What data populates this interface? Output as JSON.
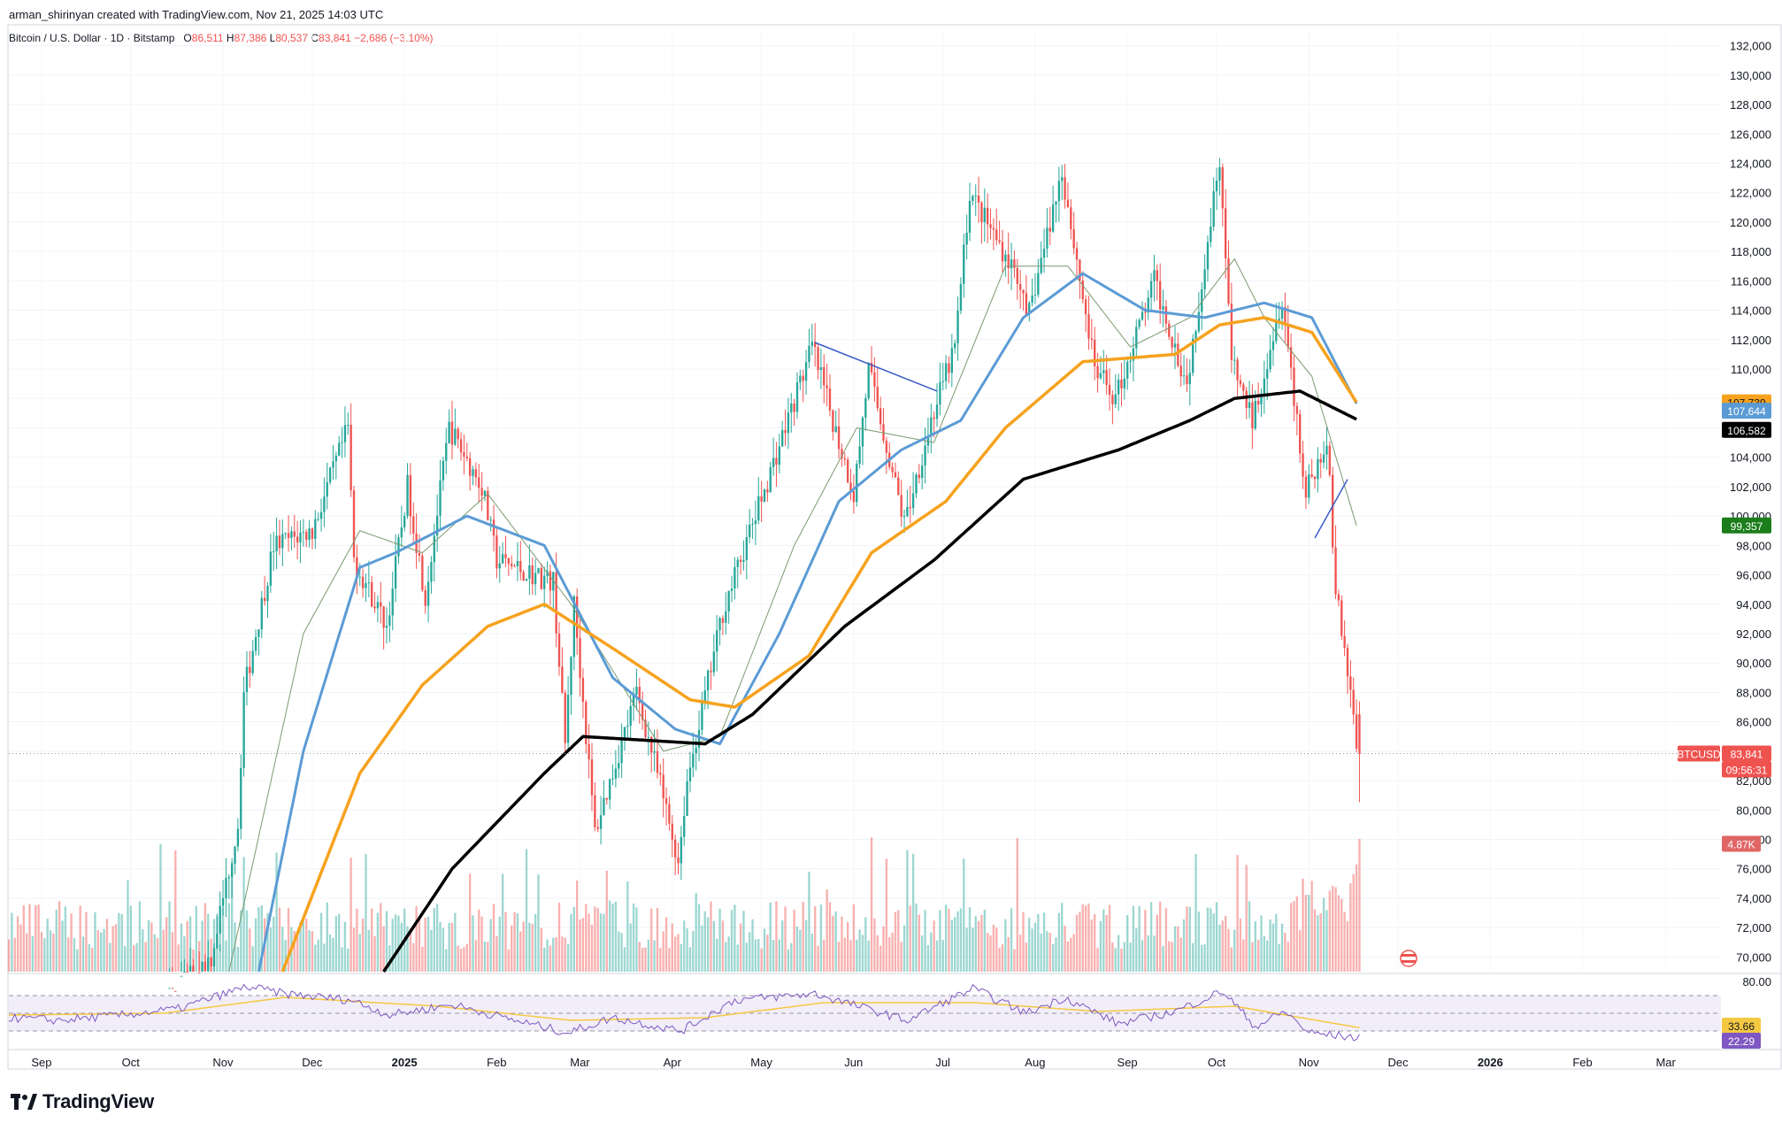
{
  "header": {
    "created_line": "arman_shirinyan created with TradingView.com, Nov 21, 2025 14:03 UTC",
    "symbol_line": "Bitcoin / U.S. Dollar · 1D · Bitstamp",
    "ohlc": {
      "o_label": "O",
      "o_value": "86,511",
      "h_label": "H",
      "h_value": "87,386",
      "l_label": "L",
      "l_value": "80,537",
      "c_label": "C",
      "c_value": "83,841",
      "change": "−2,686 (−3.10%)"
    }
  },
  "brand": {
    "name": "TradingView"
  },
  "colors": {
    "up": "#26a69a",
    "down": "#ef5350",
    "ma_fast": "#7a9a6e",
    "ma_blue": "#5b9bd5",
    "ma_orange": "#f6a21e",
    "ma_black": "#000000",
    "trendline": "#3a5cc7",
    "rsi_line": "#7e57c2",
    "rsi_ma": "#f5c842",
    "rsi_band": "#ede7f6"
  },
  "chart_data": {
    "type": "candlestick",
    "symbol": "Bitcoin / U.S. Dollar",
    "timeframe": "1D",
    "exchange": "Bitstamp",
    "price_axis": {
      "ticks": [
        "132,000",
        "130,000",
        "128,000",
        "126,000",
        "124,000",
        "122,000",
        "120,000",
        "118,000",
        "116,000",
        "114,000",
        "112,000",
        "110,000",
        "108,000",
        "106,000",
        "104,000",
        "102,000",
        "100,000",
        "98,000",
        "96,000",
        "94,000",
        "92,000",
        "90,000",
        "88,000",
        "86,000",
        "84,000",
        "82,000",
        "80,000",
        "78,000",
        "76,000",
        "74,000",
        "72,000",
        "70,000"
      ],
      "tick_values": [
        132000,
        130000,
        128000,
        126000,
        124000,
        122000,
        120000,
        118000,
        116000,
        114000,
        112000,
        110000,
        108000,
        106000,
        104000,
        102000,
        100000,
        98000,
        96000,
        94000,
        92000,
        90000,
        88000,
        86000,
        84000,
        82000,
        80000,
        78000,
        76000,
        74000,
        72000,
        70000
      ],
      "range": [
        69000,
        133000
      ]
    },
    "time_axis": {
      "labels": [
        "Sep",
        "Oct",
        "Nov",
        "Dec",
        "2025",
        "Feb",
        "Mar",
        "Apr",
        "May",
        "Jun",
        "Jul",
        "Aug",
        "Sep",
        "Oct",
        "Nov",
        "Dec",
        "2026",
        "Feb",
        "Mar"
      ],
      "bold": [
        "2025",
        "2026"
      ]
    },
    "price_path": [
      [
        "2024-08-24",
        64000
      ],
      [
        "2024-09-01",
        59000
      ],
      [
        "2024-09-15",
        60000
      ],
      [
        "2024-10-01",
        62000
      ],
      [
        "2024-10-15",
        67000
      ],
      [
        "2024-11-01",
        70000
      ],
      [
        "2024-11-06",
        75000
      ],
      [
        "2024-11-10",
        79000
      ],
      [
        "2024-11-12",
        88000
      ],
      [
        "2024-11-22",
        98000
      ],
      [
        "2024-12-05",
        99000
      ],
      [
        "2024-12-17",
        106000
      ],
      [
        "2024-12-19",
        97000
      ],
      [
        "2024-12-30",
        92500
      ],
      [
        "2025-01-06",
        102000
      ],
      [
        "2025-01-12",
        94500
      ],
      [
        "2025-01-20",
        106000
      ],
      [
        "2025-01-31",
        102000
      ],
      [
        "2025-02-05",
        97000
      ],
      [
        "2025-02-24",
        95500
      ],
      [
        "2025-02-28",
        84500
      ],
      [
        "2025-03-03",
        94000
      ],
      [
        "2025-03-10",
        78500
      ],
      [
        "2025-03-24",
        88000
      ],
      [
        "2025-03-31",
        82500
      ],
      [
        "2025-04-07",
        76500
      ],
      [
        "2025-04-10",
        82000
      ],
      [
        "2025-04-22",
        93500
      ],
      [
        "2025-05-08",
        103000
      ],
      [
        "2025-05-22",
        111500
      ],
      [
        "2025-06-05",
        101500
      ],
      [
        "2025-06-10",
        110000
      ],
      [
        "2025-06-22",
        99500
      ],
      [
        "2025-07-01",
        106500
      ],
      [
        "2025-07-09",
        111500
      ],
      [
        "2025-07-14",
        122000
      ],
      [
        "2025-07-31",
        116000
      ],
      [
        "2025-08-02",
        113000
      ],
      [
        "2025-08-14",
        123500
      ],
      [
        "2025-08-25",
        110000
      ],
      [
        "2025-09-01",
        108000
      ],
      [
        "2025-09-14",
        116000
      ],
      [
        "2025-09-25",
        109000
      ],
      [
        "2025-10-06",
        124500
      ],
      [
        "2025-10-10",
        110500
      ],
      [
        "2025-10-17",
        106500
      ],
      [
        "2025-10-27",
        115000
      ],
      [
        "2025-11-04",
        101500
      ],
      [
        "2025-11-11",
        105500
      ],
      [
        "2025-11-14",
        95000
      ],
      [
        "2025-11-20",
        86500
      ],
      [
        "2025-11-21",
        83841
      ]
    ],
    "last_candle": {
      "date": "2025-11-21",
      "open": 86511,
      "high": 87386,
      "low": 80537,
      "close": 83841
    },
    "moving_averages": [
      {
        "color": "#7a9a6e",
        "last_value": 99357,
        "points": [
          [
            "2024-11-06",
            69000
          ],
          [
            "2024-12-01",
            92000
          ],
          [
            "2024-12-20",
            99000
          ],
          [
            "2025-01-10",
            97500
          ],
          [
            "2025-02-01",
            101500
          ],
          [
            "2025-03-01",
            94000
          ],
          [
            "2025-04-01",
            84000
          ],
          [
            "2025-04-20",
            85000
          ],
          [
            "2025-05-15",
            98000
          ],
          [
            "2025-06-05",
            106000
          ],
          [
            "2025-07-01",
            105000
          ],
          [
            "2025-07-25",
            117000
          ],
          [
            "2025-08-15",
            117000
          ],
          [
            "2025-09-05",
            111500
          ],
          [
            "2025-09-25",
            113500
          ],
          [
            "2025-10-10",
            117500
          ],
          [
            "2025-10-20",
            113500
          ],
          [
            "2025-11-05",
            109500
          ],
          [
            "2025-11-20",
            99357
          ]
        ]
      },
      {
        "color": "#5b9bd5",
        "last_value": 107644,
        "points": [
          [
            "2024-11-16",
            69000
          ],
          [
            "2024-12-01",
            84000
          ],
          [
            "2024-12-20",
            96500
          ],
          [
            "2025-01-01",
            97500
          ],
          [
            "2025-01-25",
            100000
          ],
          [
            "2025-02-20",
            98000
          ],
          [
            "2025-03-15",
            89000
          ],
          [
            "2025-04-05",
            85500
          ],
          [
            "2025-04-20",
            84500
          ],
          [
            "2025-05-10",
            92000
          ],
          [
            "2025-05-30",
            101000
          ],
          [
            "2025-06-20",
            104500
          ],
          [
            "2025-07-10",
            106500
          ],
          [
            "2025-07-31",
            113500
          ],
          [
            "2025-08-20",
            116500
          ],
          [
            "2025-09-10",
            114000
          ],
          [
            "2025-09-30",
            113500
          ],
          [
            "2025-10-20",
            114500
          ],
          [
            "2025-11-05",
            113500
          ],
          [
            "2025-11-20",
            107644
          ]
        ]
      },
      {
        "color": "#f6a21e",
        "last_value": 107739,
        "points": [
          [
            "2024-11-24",
            69000
          ],
          [
            "2024-12-20",
            82500
          ],
          [
            "2025-01-10",
            88500
          ],
          [
            "2025-02-01",
            92500
          ],
          [
            "2025-02-20",
            94000
          ],
          [
            "2025-03-15",
            91000
          ],
          [
            "2025-04-10",
            87500
          ],
          [
            "2025-04-25",
            87000
          ],
          [
            "2025-05-20",
            90500
          ],
          [
            "2025-06-10",
            97500
          ],
          [
            "2025-07-05",
            101000
          ],
          [
            "2025-07-25",
            106000
          ],
          [
            "2025-08-20",
            110500
          ],
          [
            "2025-09-20",
            111000
          ],
          [
            "2025-10-05",
            113000
          ],
          [
            "2025-10-20",
            113500
          ],
          [
            "2025-11-05",
            112500
          ],
          [
            "2025-11-20",
            107739
          ]
        ]
      },
      {
        "color": "#000000",
        "last_value": 106582,
        "points": [
          [
            "2024-12-28",
            69000
          ],
          [
            "2025-01-20",
            76000
          ],
          [
            "2025-02-20",
            82500
          ],
          [
            "2025-03-05",
            85000
          ],
          [
            "2025-04-15",
            84500
          ],
          [
            "2025-05-01",
            86500
          ],
          [
            "2025-06-01",
            92500
          ],
          [
            "2025-07-01",
            97000
          ],
          [
            "2025-07-31",
            102500
          ],
          [
            "2025-09-01",
            104500
          ],
          [
            "2025-09-25",
            106500
          ],
          [
            "2025-10-10",
            108000
          ],
          [
            "2025-11-01",
            108500
          ],
          [
            "2025-11-20",
            106582
          ]
        ]
      }
    ],
    "trendlines": [
      {
        "from": [
          "2025-05-22",
          111800
        ],
        "to": [
          "2025-07-02",
          108500
        ]
      },
      {
        "from": [
          "2025-11-06",
          98500
        ],
        "to": [
          "2025-11-17",
          102500
        ]
      }
    ],
    "volume": {
      "last": "4.87K"
    },
    "rsi": {
      "levels": [
        "80.00"
      ],
      "last_value": "22.29",
      "ma_value": "33.66",
      "path": [
        [
          "2024-08-24",
          45
        ],
        [
          "2024-09-10",
          42
        ],
        [
          "2024-10-01",
          48
        ],
        [
          "2024-10-20",
          55
        ],
        [
          "2024-11-12",
          80
        ],
        [
          "2024-11-25",
          72
        ],
        [
          "2024-12-17",
          65
        ],
        [
          "2024-12-30",
          48
        ],
        [
          "2025-01-20",
          60
        ],
        [
          "2025-02-10",
          42
        ],
        [
          "2025-02-28",
          28
        ],
        [
          "2025-03-15",
          45
        ],
        [
          "2025-04-07",
          30
        ],
        [
          "2025-04-25",
          65
        ],
        [
          "2025-05-22",
          72
        ],
        [
          "2025-06-22",
          42
        ],
        [
          "2025-07-14",
          78
        ],
        [
          "2025-08-01",
          50
        ],
        [
          "2025-08-14",
          68
        ],
        [
          "2025-09-01",
          38
        ],
        [
          "2025-09-20",
          52
        ],
        [
          "2025-10-06",
          75
        ],
        [
          "2025-10-17",
          35
        ],
        [
          "2025-10-27",
          52
        ],
        [
          "2025-11-04",
          28
        ],
        [
          "2025-11-21",
          22.29
        ]
      ],
      "ma_path": [
        [
          "2024-08-24",
          48
        ],
        [
          "2024-10-15",
          50
        ],
        [
          "2024-11-25",
          68
        ],
        [
          "2025-01-15",
          58
        ],
        [
          "2025-03-01",
          42
        ],
        [
          "2025-04-15",
          45
        ],
        [
          "2025-05-25",
          62
        ],
        [
          "2025-07-15",
          62
        ],
        [
          "2025-08-25",
          52
        ],
        [
          "2025-10-10",
          58
        ],
        [
          "2025-11-21",
          33.66
        ]
      ]
    },
    "labels": {
      "ma_orange": "107,739",
      "ma_blue": "107,644",
      "ma_black": "106,582",
      "ma_fast": "99,357",
      "symbol_tag": "BTCUSD",
      "last_price": "83,841",
      "countdown": "09:56:31",
      "volume": "4.87K",
      "rsi_ma": "33.66",
      "rsi": "22.29"
    }
  }
}
